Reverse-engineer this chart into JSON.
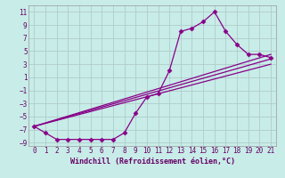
{
  "xlabel": "Windchill (Refroidissement éolien,°C)",
  "bg_color": "#c8ece8",
  "grid_color": "#b0cccb",
  "line_color": "#880088",
  "xlim": [
    -0.5,
    21.5
  ],
  "ylim": [
    -9.5,
    12.0
  ],
  "xticks": [
    0,
    1,
    2,
    3,
    4,
    5,
    6,
    7,
    8,
    9,
    10,
    11,
    12,
    13,
    14,
    15,
    16,
    17,
    18,
    19,
    20,
    21
  ],
  "yticks": [
    -9,
    -7,
    -5,
    -3,
    -1,
    1,
    3,
    5,
    7,
    9,
    11
  ],
  "series1_x": [
    0,
    1,
    2,
    3,
    4,
    5,
    6,
    7,
    8,
    9,
    10,
    11,
    12,
    13,
    14,
    15,
    16,
    17,
    18,
    19,
    20,
    21
  ],
  "series1_y": [
    -6.5,
    -7.5,
    -8.5,
    -8.5,
    -8.5,
    -8.5,
    -8.5,
    -8.5,
    -7.5,
    -4.5,
    -2.0,
    -1.5,
    2.0,
    8.0,
    8.5,
    9.5,
    11.0,
    8.0,
    6.0,
    4.5,
    4.5,
    4.0
  ],
  "series2_x": [
    0,
    21
  ],
  "series2_y": [
    -6.5,
    4.5
  ],
  "series3_x": [
    0,
    21
  ],
  "series3_y": [
    -6.5,
    3.0
  ],
  "series4_x": [
    0,
    21
  ],
  "series4_y": [
    -6.5,
    3.8
  ]
}
